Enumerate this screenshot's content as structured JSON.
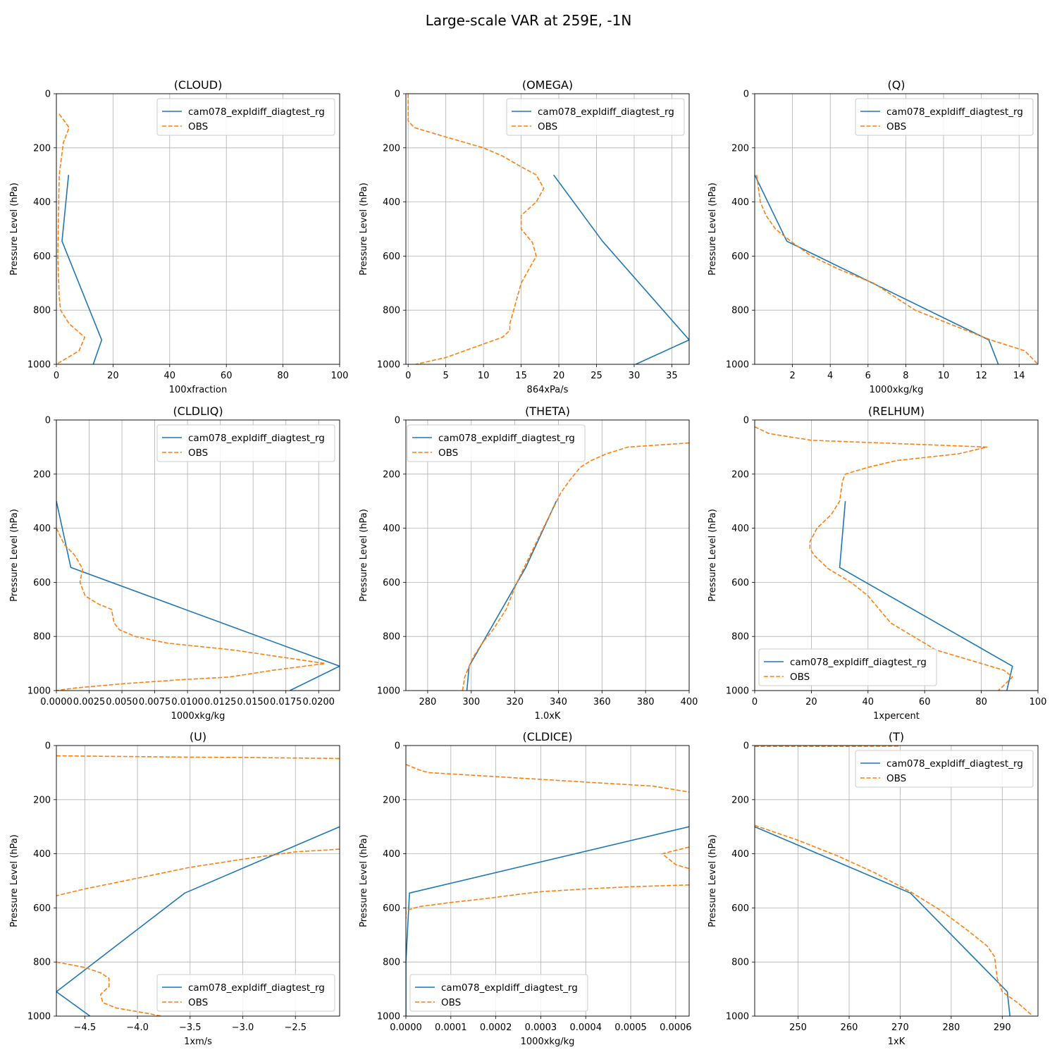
{
  "figure": {
    "title": "Large-scale VAR at 259E, -1N",
    "ylabel": "Pressure Level (hPa)"
  },
  "colors": {
    "model": "#1f77b4",
    "obs": "#ff7f0e",
    "grid": "#b0b0b0"
  },
  "chart_data": [
    {
      "type": "line",
      "title": "(CLOUD)",
      "xlabel": "100xfraction",
      "ylabel": "Pressure Level (hPa)",
      "xlim": [
        0,
        100
      ],
      "ylim": [
        1000,
        0
      ],
      "xticks": [
        0,
        20,
        40,
        60,
        80,
        100
      ],
      "xtick_labels": [
        "0",
        "20",
        "40",
        "60",
        "80",
        "100"
      ],
      "yticks": [
        0,
        200,
        400,
        600,
        800,
        1000
      ],
      "legend": "upper-right",
      "series": [
        {
          "name": "cam078_expldiff_diagtest_rg",
          "style": "solid",
          "x": [
            4.3,
            2.0,
            16.0,
            13.0
          ],
          "y": [
            300,
            545,
            910,
            1000
          ]
        },
        {
          "name": "OBS",
          "style": "dashed",
          "x": [
            1.0,
            4.5,
            2.5,
            1.0,
            0.5,
            1.0,
            1.5,
            4.5,
            10.0,
            8.0,
            0
          ],
          "y": [
            75,
            125,
            180,
            300,
            600,
            750,
            800,
            850,
            900,
            950,
            1000
          ]
        }
      ]
    },
    {
      "type": "line",
      "title": "(OMEGA)",
      "xlabel": "864xPa/s",
      "ylabel": "Pressure Level (hPa)",
      "xlim": [
        -0.3,
        37.3
      ],
      "ylim": [
        1000,
        0
      ],
      "xticks": [
        0,
        5,
        10,
        15,
        20,
        25,
        30,
        35
      ],
      "xtick_labels": [
        "0",
        "5",
        "10",
        "15",
        "20",
        "25",
        "30",
        "35"
      ],
      "yticks": [
        0,
        200,
        400,
        600,
        800,
        1000
      ],
      "legend": "upper-right",
      "series": [
        {
          "name": "cam078_expldiff_diagtest_rg",
          "style": "solid",
          "x": [
            19.3,
            25.8,
            37.3,
            30.2
          ],
          "y": [
            300,
            545,
            910,
            1000
          ]
        },
        {
          "name": "OBS",
          "style": "dashed",
          "x": [
            0,
            0,
            0,
            0.8,
            5,
            10,
            12.5,
            15,
            17,
            18,
            17,
            15,
            15,
            16.5,
            17,
            15,
            14,
            13.5,
            13.5,
            12.5,
            10,
            5,
            1
          ],
          "y": [
            0,
            50,
            100,
            125,
            160,
            200,
            230,
            270,
            300,
            350,
            400,
            450,
            500,
            550,
            600,
            700,
            800,
            850,
            875,
            900,
            925,
            975,
            1000
          ]
        }
      ]
    },
    {
      "type": "line",
      "title": "(Q)",
      "xlabel": "1000xkg/kg",
      "ylabel": "Pressure Level (hPa)",
      "xlim": [
        0,
        15
      ],
      "ylim": [
        1000,
        0
      ],
      "xticks": [
        2,
        4,
        6,
        8,
        10,
        12,
        14
      ],
      "xtick_labels": [
        "2",
        "4",
        "6",
        "8",
        "10",
        "12",
        "14"
      ],
      "yticks": [
        0,
        200,
        400,
        600,
        800,
        1000
      ],
      "legend": "upper-right",
      "series": [
        {
          "name": "cam078_expldiff_diagtest_rg",
          "style": "solid",
          "x": [
            0,
            1.7,
            12.4,
            12.9
          ],
          "y": [
            300,
            545,
            910,
            1000
          ]
        },
        {
          "name": "OBS",
          "style": "dashed",
          "x": [
            0.1,
            0.3,
            0.6,
            1.1,
            2.0,
            3.0,
            4.5,
            6.3,
            8.5,
            10.3,
            12.5,
            14.3,
            15.0
          ],
          "y": [
            300,
            400,
            450,
            500,
            550,
            600,
            650,
            700,
            800,
            850,
            910,
            950,
            1000
          ]
        }
      ]
    },
    {
      "type": "line",
      "title": "(CLDLIQ)",
      "xlabel": "1000xkg/kg",
      "ylabel": "Pressure Level (hPa)",
      "xlim": [
        0,
        0.0216
      ],
      "ylim": [
        1000,
        0
      ],
      "xticks": [
        0,
        0.0025,
        0.005,
        0.0075,
        0.01,
        0.0125,
        0.015,
        0.0175,
        0.02
      ],
      "xtick_labels": [
        "0.0000",
        "0.0025",
        "0.0050",
        "0.0075",
        "0.0100",
        "0.0125",
        "0.0150",
        "0.0175",
        "0.0200"
      ],
      "yticks": [
        0,
        200,
        400,
        600,
        800,
        1000
      ],
      "legend": "upper-right",
      "series": [
        {
          "name": "cam078_expldiff_diagtest_rg",
          "style": "solid",
          "x": [
            0,
            0.0011,
            0.0216,
            0.0178
          ],
          "y": [
            300,
            545,
            910,
            1000
          ]
        },
        {
          "name": "OBS",
          "style": "dashed",
          "x": [
            0,
            0.0002,
            0.0006,
            0.0014,
            0.002,
            0.0018,
            0.0022,
            0.0032,
            0.0042,
            0.0044,
            0.0048,
            0.006,
            0.0085,
            0.0135,
            0.0205,
            0.0165,
            0.0132,
            0.0095,
            0.005,
            0.0015,
            0
          ],
          "y": [
            400,
            420,
            460,
            500,
            550,
            600,
            650,
            680,
            700,
            750,
            775,
            800,
            825,
            850,
            900,
            925,
            950,
            960,
            975,
            990,
            1000
          ]
        }
      ]
    },
    {
      "type": "line",
      "title": "(THETA)",
      "xlabel": "1.0xK",
      "ylabel": "Pressure Level (hPa)",
      "xlim": [
        270,
        400
      ],
      "ylim": [
        1000,
        0
      ],
      "xticks": [
        280,
        300,
        320,
        340,
        360,
        380,
        400
      ],
      "xtick_labels": [
        "280",
        "300",
        "320",
        "340",
        "360",
        "380",
        "400"
      ],
      "yticks": [
        0,
        200,
        400,
        600,
        800,
        1000
      ],
      "legend": "upper-left",
      "series": [
        {
          "name": "cam078_expldiff_diagtest_rg",
          "style": "solid",
          "x": [
            339,
            325,
            299,
            298
          ],
          "y": [
            300,
            545,
            910,
            1000
          ]
        },
        {
          "name": "OBS",
          "style": "dashed",
          "x": [
            296,
            297,
            299,
            301,
            305,
            310,
            316,
            321,
            327,
            333,
            338,
            341,
            345,
            350,
            355,
            362,
            372,
            400
          ],
          "y": [
            1000,
            950,
            910,
            875,
            825,
            775,
            700,
            600,
            500,
            400,
            320,
            270,
            225,
            175,
            150,
            125,
            100,
            85
          ]
        }
      ]
    },
    {
      "type": "line",
      "title": "(RELHUM)",
      "xlabel": "1xpercent",
      "ylabel": "Pressure Level (hPa)",
      "xlim": [
        0,
        100
      ],
      "ylim": [
        1000,
        0
      ],
      "xticks": [
        0,
        20,
        40,
        60,
        80,
        100
      ],
      "xtick_labels": [
        "0",
        "20",
        "40",
        "60",
        "80",
        "100"
      ],
      "yticks": [
        0,
        200,
        400,
        600,
        800,
        1000
      ],
      "legend": "lower-left",
      "series": [
        {
          "name": "cam078_expldiff_diagtest_rg",
          "style": "solid",
          "x": [
            32,
            30,
            91,
            89
          ],
          "y": [
            300,
            545,
            910,
            1000
          ]
        },
        {
          "name": "OBS",
          "style": "dashed",
          "x": [
            0,
            5,
            20,
            82,
            72,
            50,
            40,
            32,
            31,
            30,
            27,
            22,
            19.5,
            19.5,
            21,
            26,
            34,
            40,
            48,
            56,
            64,
            80,
            88,
            91,
            86
          ],
          "y": [
            25,
            50,
            75,
            100,
            125,
            150,
            175,
            200,
            225,
            300,
            350,
            400,
            450,
            475,
            500,
            550,
            600,
            650,
            750,
            800,
            850,
            900,
            925,
            950,
            1000
          ]
        }
      ]
    },
    {
      "type": "line",
      "title": "(U)",
      "xlabel": "1xm/s",
      "ylabel": "Pressure Level (hPa)",
      "xlim": [
        -4.77,
        -2.08
      ],
      "ylim": [
        1000,
        0
      ],
      "xticks": [
        -4.5,
        -4.0,
        -3.5,
        -3.0,
        -2.5
      ],
      "xtick_labels": [
        "−4.5",
        "−4.0",
        "−3.5",
        "−3.0",
        "−2.5"
      ],
      "yticks": [
        0,
        200,
        400,
        600,
        800,
        1000
      ],
      "legend": "lower-right",
      "series": [
        {
          "name": "cam078_expldiff_diagtest_rg",
          "style": "solid",
          "x": [
            -2.08,
            -3.55,
            -4.77,
            -4.45
          ],
          "y": [
            300,
            545,
            910,
            1000
          ]
        },
        {
          "name": "OBS",
          "style": "dashed",
          "x": [
            -4.77,
            -4.5,
            -4.0,
            -3.5,
            -3.0,
            -2.5,
            -2.08
          ],
          "y": [
            38,
            39,
            41,
            43,
            44,
            46,
            48
          ]
        },
        {
          "name": "OBS",
          "style": "dashed",
          "x": [
            -2.08,
            -2.5,
            -3.0,
            -3.5,
            -4.0,
            -4.5,
            -4.77
          ],
          "y": [
            383,
            393,
            420,
            450,
            490,
            530,
            555
          ]
        },
        {
          "name": "OBS",
          "style": "dashed",
          "x": [
            -4.77,
            -4.5,
            -4.35,
            -4.27,
            -4.27,
            -4.35,
            -4.33,
            -4.2,
            -3.9,
            -3.77
          ],
          "y": [
            800,
            820,
            840,
            860,
            890,
            920,
            950,
            970,
            990,
            1000
          ]
        }
      ]
    },
    {
      "type": "line",
      "title": "(CLDICE)",
      "xlabel": "1000xkg/kg",
      "ylabel": "Pressure Level (hPa)",
      "xlim": [
        0,
        0.00063
      ],
      "ylim": [
        1000,
        0
      ],
      "xticks": [
        0,
        0.0001,
        0.0002,
        0.0003,
        0.0004,
        0.0005,
        0.0006
      ],
      "xtick_labels": [
        "0.0000",
        "0.0001",
        "0.0002",
        "0.0003",
        "0.0004",
        "0.0005",
        "0.0006"
      ],
      "yticks": [
        0,
        200,
        400,
        600,
        800,
        1000
      ],
      "legend": "lower-left",
      "series": [
        {
          "name": "cam078_expldiff_diagtest_rg",
          "style": "solid",
          "x": [
            0.00063,
            8e-06,
            0,
            0
          ],
          "y": [
            300,
            545,
            800,
            1000
          ]
        },
        {
          "name": "OBS",
          "style": "dashed",
          "x": [
            0,
            3e-05,
            5e-05,
            0.00015,
            0.00025,
            0.00035,
            0.00045,
            0.00055,
            0.00063
          ],
          "y": [
            70,
            90,
            100,
            110,
            120,
            130,
            140,
            150,
            172
          ]
        },
        {
          "name": "OBS",
          "style": "dashed",
          "x": [
            0.00063,
            0.00057,
            0.0006,
            0.00063
          ],
          "y": [
            375,
            400,
            440,
            455
          ]
        },
        {
          "name": "OBS",
          "style": "dashed",
          "x": [
            0.00063,
            0.0005,
            0.0004,
            0.0003,
            0.00025,
            0.00018,
            0.0001,
            3e-05,
            0,
            0
          ],
          "y": [
            515,
            522,
            530,
            540,
            550,
            565,
            580,
            595,
            610,
            640
          ]
        }
      ]
    },
    {
      "type": "line",
      "title": "(T)",
      "xlabel": "1xK",
      "ylabel": "Pressure Level (hPa)",
      "xlim": [
        241.5,
        297
      ],
      "ylim": [
        1000,
        0
      ],
      "xticks": [
        250,
        260,
        270,
        280,
        290
      ],
      "xtick_labels": [
        "250",
        "260",
        "270",
        "280",
        "290"
      ],
      "yticks": [
        0,
        200,
        400,
        600,
        800,
        1000
      ],
      "legend": "upper-right",
      "series": [
        {
          "name": "cam078_expldiff_diagtest_rg",
          "style": "solid",
          "x": [
            241.5,
            272,
            291,
            291.5
          ],
          "y": [
            300,
            545,
            910,
            1000
          ]
        },
        {
          "name": "OBS",
          "style": "dashed",
          "x": [
            241.5,
            250,
            258,
            265,
            272,
            278,
            283,
            287,
            288.5,
            289,
            290,
            293,
            296
          ],
          "y": [
            295,
            350,
            410,
            470,
            540,
            610,
            680,
            740,
            780,
            860,
            910,
            950,
            1000
          ]
        },
        {
          "name": "OBS",
          "style": "dashed",
          "x": [
            241.5,
            250,
            260,
            270
          ],
          "y": [
            3,
            3,
            3,
            2
          ]
        }
      ]
    }
  ]
}
